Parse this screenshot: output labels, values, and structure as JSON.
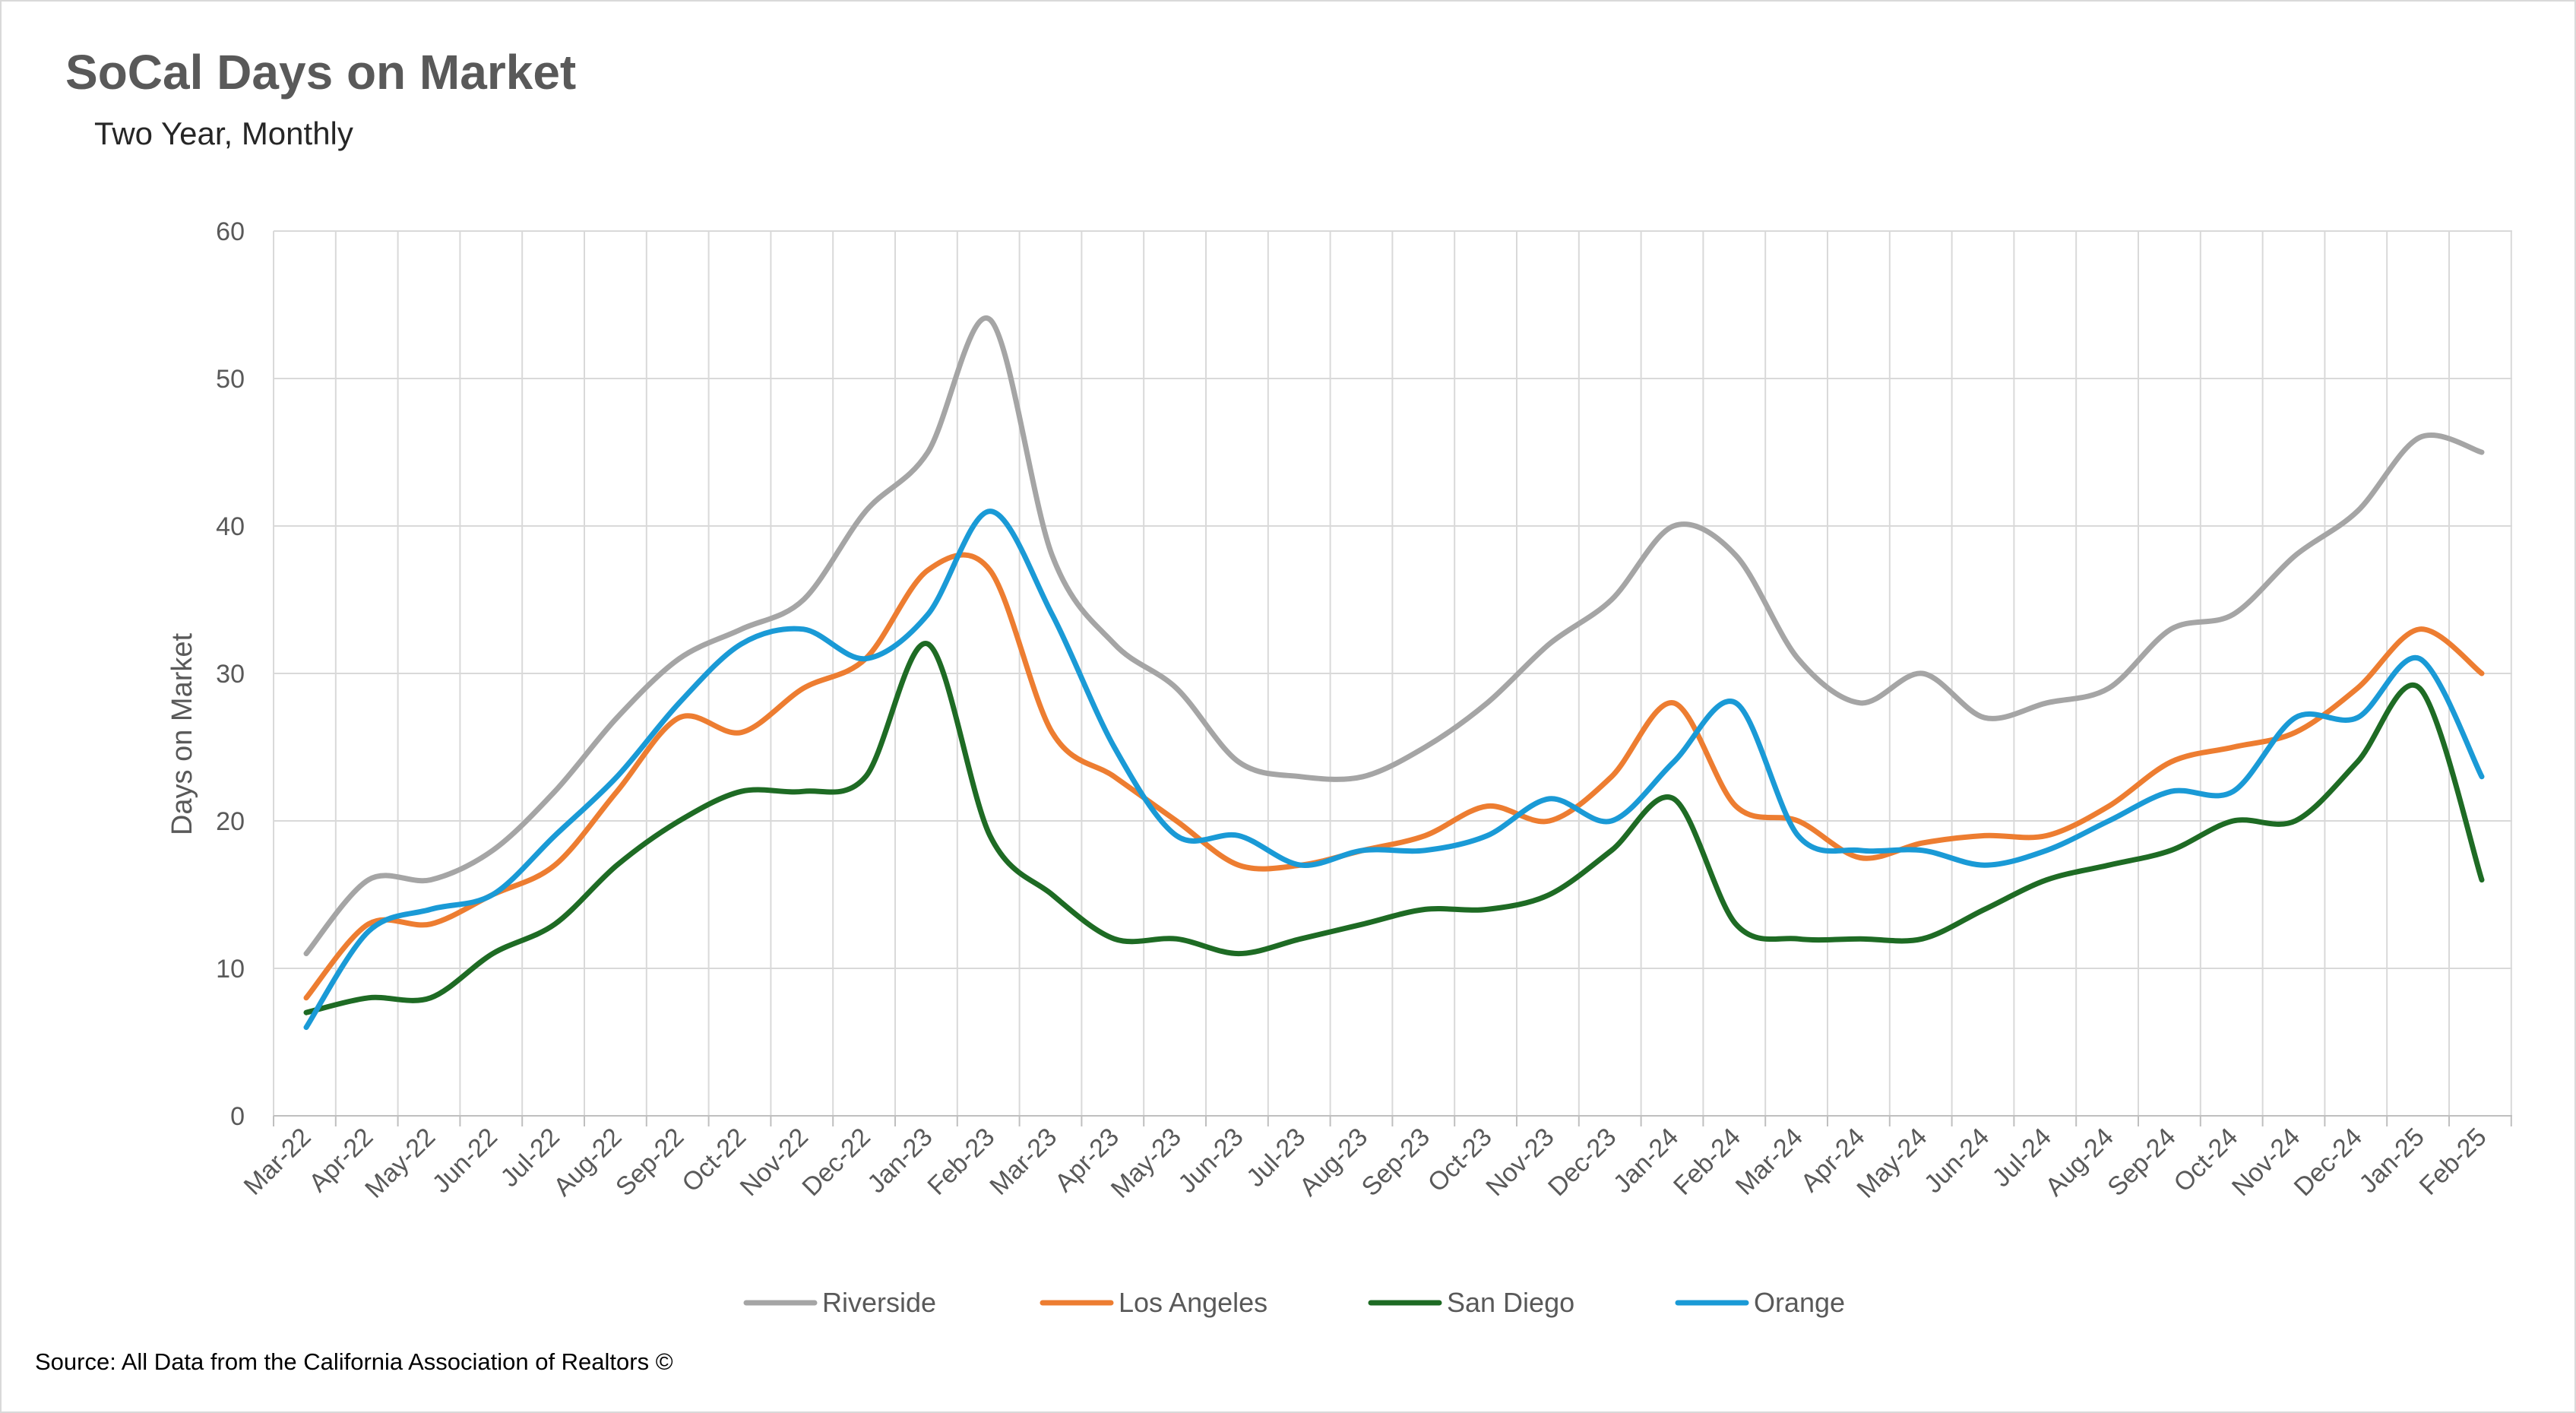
{
  "title": "SoCal Days on Market",
  "subtitle": "Two Year, Monthly",
  "source": "Source: All Data from the California Association of Realtors ©",
  "chart_data": {
    "type": "line",
    "title": "SoCal Days on Market",
    "subtitle": "Two Year, Monthly",
    "xlabel": "",
    "ylabel": "Days on Market",
    "ylim": [
      0,
      60
    ],
    "yticks": [
      0,
      10,
      20,
      30,
      40,
      50,
      60
    ],
    "grid": true,
    "legend_position": "bottom",
    "categories": [
      "Mar-22",
      "Apr-22",
      "May-22",
      "Jun-22",
      "Jul-22",
      "Aug-22",
      "Sep-22",
      "Oct-22",
      "Nov-22",
      "Dec-22",
      "Jan-23",
      "Feb-23",
      "Mar-23",
      "Apr-23",
      "May-23",
      "Jun-23",
      "Jul-23",
      "Aug-23",
      "Sep-23",
      "Oct-23",
      "Nov-23",
      "Dec-23",
      "Jan-24",
      "Feb-24",
      "Mar-24",
      "Apr-24",
      "May-24",
      "Jun-24",
      "Jul-24",
      "Aug-24",
      "Sep-24",
      "Oct-24",
      "Nov-24",
      "Dec-24",
      "Jan-25",
      "Feb-25"
    ],
    "series": [
      {
        "name": "Riverside",
        "color": "#a5a5a5",
        "values": [
          11,
          16,
          16,
          18,
          22,
          27,
          31,
          33,
          35,
          41,
          45,
          54,
          38,
          32,
          29,
          24,
          23,
          23,
          25,
          28,
          32,
          35,
          40,
          38,
          31,
          28,
          30,
          27,
          28,
          29,
          33,
          34,
          38,
          41,
          46,
          45
        ]
      },
      {
        "name": "Los Angeles",
        "color": "#ed7d31",
        "values": [
          8,
          13,
          13,
          15,
          17,
          22,
          27,
          26,
          29,
          31,
          37,
          37,
          26,
          23,
          20,
          17,
          17,
          18,
          19,
          21,
          20,
          23,
          28,
          21,
          20,
          17.5,
          18.5,
          19,
          19,
          21,
          24,
          25,
          26,
          29,
          33,
          30
        ]
      },
      {
        "name": "San Diego",
        "color": "#1e6b24",
        "values": [
          7,
          8,
          8,
          11,
          13,
          17,
          20,
          22,
          22,
          23,
          32,
          19,
          15,
          12,
          12,
          11,
          12,
          13,
          14,
          14,
          15,
          18,
          21.5,
          13,
          12,
          12,
          12,
          14,
          16,
          17,
          18,
          20,
          20,
          24,
          29,
          16
        ]
      },
      {
        "name": "Orange",
        "color": "#1a9ad6",
        "values": [
          6,
          12.5,
          14,
          15,
          19,
          23,
          28,
          32,
          33,
          31,
          34,
          41,
          34,
          25,
          19,
          19,
          17,
          18,
          18,
          19,
          21.5,
          20,
          24,
          28,
          19,
          18,
          18,
          17,
          18,
          20,
          22,
          22,
          27,
          27,
          31,
          23
        ]
      }
    ]
  }
}
